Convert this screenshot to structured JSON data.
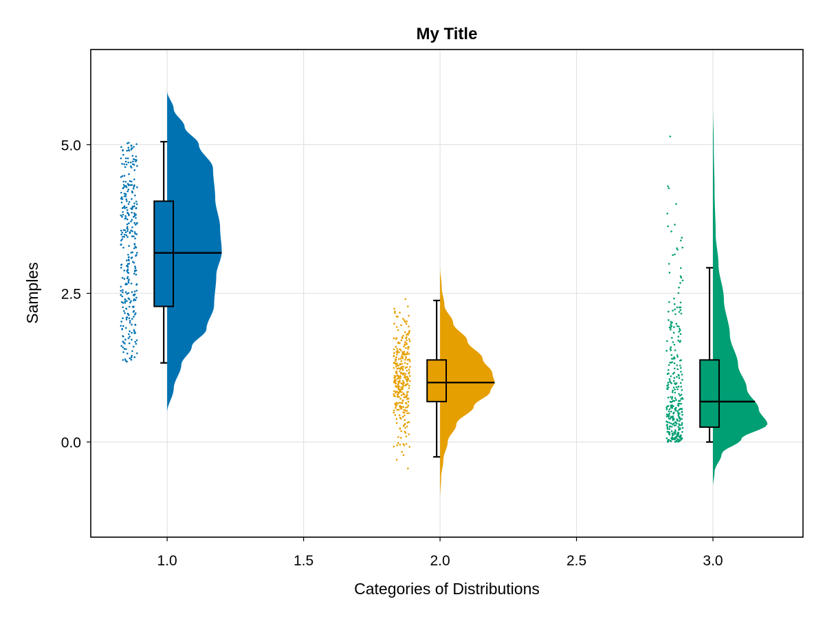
{
  "chart_data": {
    "type": "raincloud",
    "title": "My Title",
    "xlabel": "Categories of Distributions",
    "ylabel": "Samples",
    "xlim": [
      0.72,
      3.33
    ],
    "ylim": [
      -1.6,
      6.6
    ],
    "x_ticks": [
      1.0,
      1.5,
      2.0,
      2.5,
      3.0
    ],
    "x_tick_labels": [
      "1.0",
      "1.5",
      "2.0",
      "2.5",
      "3.0"
    ],
    "y_ticks": [
      0.0,
      2.5,
      5.0
    ],
    "y_tick_labels": [
      "0.0",
      "2.5",
      "5.0"
    ],
    "grid": true,
    "legend": "none",
    "series": [
      {
        "category": 1.0,
        "color": "#0072B2",
        "box": {
          "whisker_low": 1.33,
          "q1": 2.28,
          "median": 3.18,
          "q3": 4.05,
          "whisker_high": 5.05
        },
        "points_range": [
          1.33,
          5.05
        ],
        "points_distribution": "uniform",
        "point_count": 320,
        "density_range": [
          0.5,
          5.9
        ],
        "density_shape": [
          [
            0.5,
            0.0
          ],
          [
            0.9,
            0.12
          ],
          [
            1.3,
            0.26
          ],
          [
            1.6,
            0.45
          ],
          [
            1.9,
            0.72
          ],
          [
            2.3,
            0.86
          ],
          [
            2.8,
            0.9
          ],
          [
            3.2,
            1.0
          ],
          [
            3.6,
            0.97
          ],
          [
            4.1,
            0.88
          ],
          [
            4.6,
            0.84
          ],
          [
            5.0,
            0.58
          ],
          [
            5.3,
            0.32
          ],
          [
            5.6,
            0.12
          ],
          [
            5.9,
            0.0
          ]
        ]
      },
      {
        "category": 2.0,
        "color": "#E69F00",
        "box": {
          "whisker_low": -0.25,
          "q1": 0.68,
          "median": 1.0,
          "q3": 1.38,
          "whisker_high": 2.38
        },
        "points_range": [
          -0.65,
          2.62
        ],
        "points_distribution": "normal",
        "point_count": 320,
        "density_range": [
          -0.95,
          2.95
        ],
        "density_shape": [
          [
            -0.95,
            0.0
          ],
          [
            -0.6,
            0.02
          ],
          [
            -0.3,
            0.06
          ],
          [
            0.0,
            0.14
          ],
          [
            0.3,
            0.3
          ],
          [
            0.6,
            0.62
          ],
          [
            0.85,
            0.92
          ],
          [
            1.0,
            1.0
          ],
          [
            1.15,
            0.96
          ],
          [
            1.4,
            0.78
          ],
          [
            1.7,
            0.5
          ],
          [
            2.0,
            0.24
          ],
          [
            2.3,
            0.08
          ],
          [
            2.6,
            0.03
          ],
          [
            2.95,
            0.0
          ]
        ]
      },
      {
        "category": 3.0,
        "color": "#009E73",
        "box": {
          "whisker_low": 0.0,
          "q1": 0.25,
          "median": 0.68,
          "q3": 1.38,
          "whisker_high": 2.93
        },
        "points_range": [
          0.0,
          5.15
        ],
        "points_distribution": "exponential",
        "point_count": 320,
        "density_range": [
          -0.75,
          5.65
        ],
        "density_shape": [
          [
            -0.75,
            0.0
          ],
          [
            -0.5,
            0.03
          ],
          [
            -0.2,
            0.16
          ],
          [
            0.05,
            0.52
          ],
          [
            0.3,
            1.0
          ],
          [
            0.55,
            0.84
          ],
          [
            0.9,
            0.62
          ],
          [
            1.3,
            0.46
          ],
          [
            1.8,
            0.31
          ],
          [
            2.4,
            0.2
          ],
          [
            3.0,
            0.1
          ],
          [
            3.5,
            0.05
          ],
          [
            4.2,
            0.03
          ],
          [
            5.0,
            0.015
          ],
          [
            5.65,
            0.0
          ]
        ]
      }
    ]
  }
}
